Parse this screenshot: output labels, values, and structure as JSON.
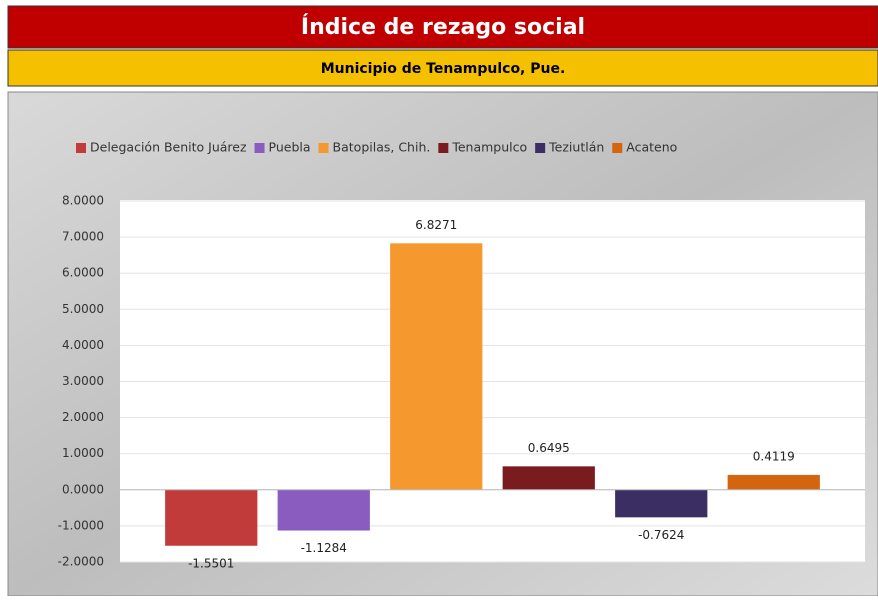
{
  "chart_data": {
    "type": "bar",
    "title": "Índice de rezago social",
    "subtitle": "Municipio de Tenampulco, Pue.",
    "series": [
      {
        "name": "Delegación Benito Juárez",
        "color": "#c23b3b",
        "values": [
          -1.5501
        ]
      },
      {
        "name": "Puebla",
        "color": "#8b5cc0",
        "values": [
          -1.1284
        ]
      },
      {
        "name": "Batopilas, Chih.",
        "color": "#f5992f",
        "values": [
          6.8271
        ]
      },
      {
        "name": "Tenampulco",
        "color": "#7a1c1f",
        "values": [
          0.6495
        ]
      },
      {
        "name": "Teziutlán",
        "color": "#3a2e62",
        "values": [
          -0.7624
        ]
      },
      {
        "name": "Acateno",
        "color": "#d5640e",
        "values": [
          0.4119
        ]
      }
    ],
    "ylim": [
      -2,
      8
    ],
    "yticks": [
      {
        "value": 8,
        "label": "8.0000"
      },
      {
        "value": 7,
        "label": "7.0000"
      },
      {
        "value": 6,
        "label": "6.0000"
      },
      {
        "value": 5,
        "label": "5.0000"
      },
      {
        "value": 4,
        "label": "4.0000"
      },
      {
        "value": 3,
        "label": "3.0000"
      },
      {
        "value": 2,
        "label": "2.0000"
      },
      {
        "value": 1,
        "label": "1.0000"
      },
      {
        "value": 0,
        "label": "0.0000"
      },
      {
        "value": -1,
        "label": "-1.0000"
      },
      {
        "value": -2,
        "label": "-2.0000"
      }
    ],
    "grid": true,
    "legend": "top"
  }
}
